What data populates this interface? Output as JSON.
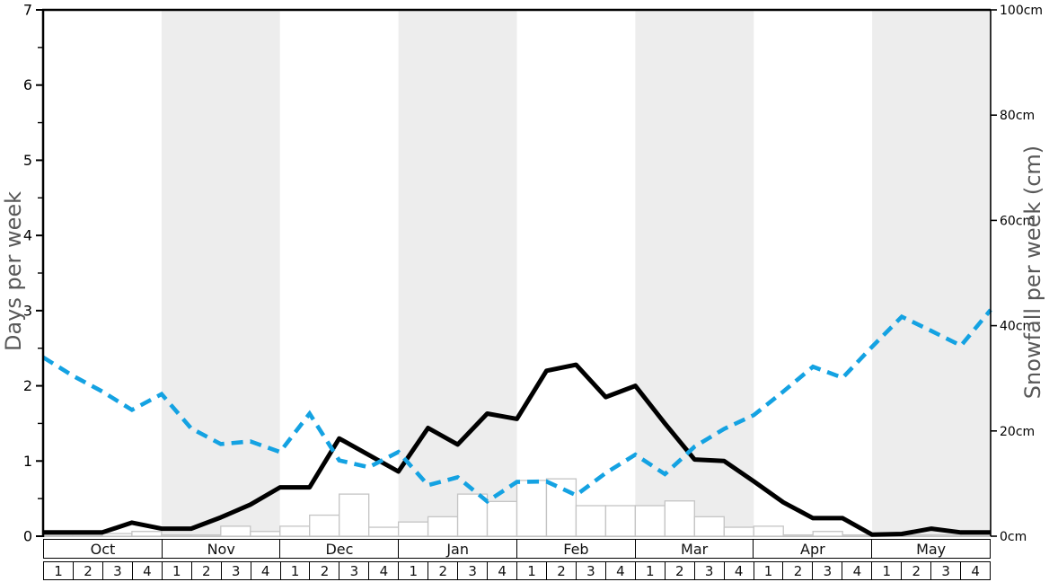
{
  "chart_data": {
    "type": "line+bar",
    "title": "",
    "left_axis": {
      "label": "Days per week",
      "min": 0,
      "max": 7,
      "tick_labels": [
        "0",
        "1",
        "2",
        "3",
        "4",
        "5",
        "6",
        "7"
      ],
      "minor_tick_step": 0.5
    },
    "right_axis": {
      "label": "Snowfall per week (cm)",
      "min": 0,
      "max": 100,
      "tick_step": 20,
      "tick_labels": [
        "0cm",
        "20cm",
        "40cm",
        "60cm",
        "80cm",
        "100cm"
      ]
    },
    "x_axis": {
      "months": [
        "Oct",
        "Nov",
        "Dec",
        "Jan",
        "Feb",
        "Mar",
        "Apr",
        "May"
      ],
      "week_labels": [
        "1",
        "2",
        "3",
        "4"
      ],
      "shaded_months": [
        "Nov",
        "Jan",
        "Mar",
        "May"
      ]
    },
    "series": [
      {
        "name": "days-of-snowfall-per-week",
        "style": "solid",
        "color": "#000000",
        "axis": "left",
        "values": [
          0.05,
          0.05,
          0.05,
          0.18,
          0.1,
          0.1,
          0.25,
          0.42,
          0.65,
          0.65,
          1.3,
          1.08,
          0.86,
          1.44,
          1.22,
          1.63,
          1.56,
          2.2,
          2.28,
          1.85,
          2.0,
          1.5,
          1.02,
          1.0,
          0.73,
          0.45,
          0.24,
          0.24,
          0.02,
          0.03,
          0.1,
          0.05,
          0.05
        ]
      },
      {
        "name": "average-snowfall-per-week-cm",
        "style": "dashed",
        "color": "#14a2e2",
        "axis": "right",
        "values": [
          34,
          30.5,
          27.5,
          24,
          27,
          20.5,
          17.5,
          18,
          16,
          23.3,
          14.4,
          13.1,
          16,
          9.7,
          11.2,
          6.6,
          10.3,
          10.4,
          7.8,
          12,
          15.5,
          11.8,
          17,
          20.4,
          23,
          27.5,
          32.2,
          30.1,
          36,
          41.7,
          39,
          36.2,
          43
        ]
      }
    ],
    "bars": {
      "name": "weekly-snowfall-bars-cm",
      "axis": "right",
      "fill": "#ffffff",
      "stroke": "#c4c4c4",
      "values": [
        0,
        0,
        0.5,
        0.9,
        0,
        0,
        1.9,
        0.9,
        1.9,
        4.0,
        8.0,
        1.7,
        2.7,
        3.7,
        8.0,
        6.6,
        10.6,
        10.9,
        5.8,
        5.8,
        5.8,
        6.7,
        3.7,
        1.7,
        1.9,
        0,
        0.9,
        0,
        0,
        0,
        0,
        0
      ]
    },
    "colors": {
      "band": "#ededed",
      "background": "#ffffff"
    },
    "legend": "none",
    "grid": "off"
  }
}
